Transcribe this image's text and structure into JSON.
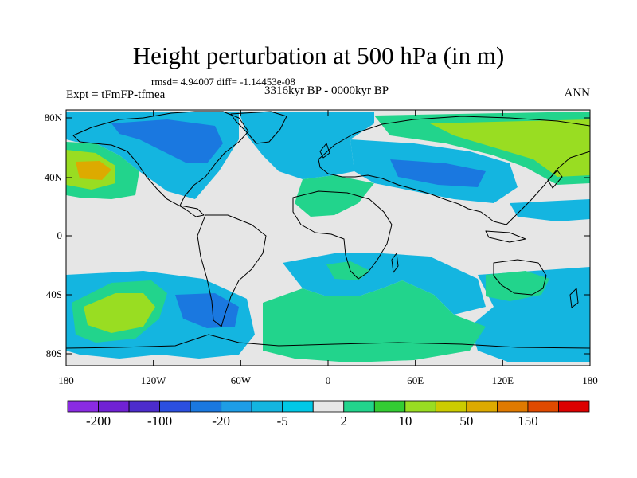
{
  "title": "Height perturbation at 500 hPa (in m)",
  "stats": "rmsd= 4.94007 diff= -1.14453e-08",
  "period": "3316kyr BP - 0000kyr BP",
  "experiment": "Expt = tFmFP-tfmea",
  "season": "ANN",
  "axes": {
    "lat_labels": [
      "80N",
      "40N",
      "0",
      "40S",
      "80S"
    ],
    "lon_labels": [
      "180",
      "120W",
      "60W",
      "0",
      "60E",
      "120E",
      "180"
    ]
  },
  "colorbar": {
    "colors": [
      "#8a2be2",
      "#7021d4",
      "#4c2ccc",
      "#2b4fe0",
      "#1a78e0",
      "#1e9de6",
      "#14b5e0",
      "#00c8e6",
      "#e6e6e6",
      "#22d48c",
      "#33cc33",
      "#99dd22",
      "#cccc00",
      "#ddaa00",
      "#e07a00",
      "#e04a00",
      "#dd0000"
    ],
    "labels": [
      "-200",
      "-100",
      "-20",
      "-5",
      "2",
      "10",
      "50",
      "150"
    ]
  },
  "fill_colors": {
    "ocean_bg": "#e6e6e6",
    "neg_light": "#14b5e0",
    "neg_mid": "#1a78e0",
    "neg_deep": "#2b4fe0",
    "pos_light": "#22d48c",
    "pos_mid": "#33cc33",
    "pos_lime": "#99dd22",
    "pos_yellow": "#cccc00",
    "pos_orange": "#ddaa00"
  }
}
